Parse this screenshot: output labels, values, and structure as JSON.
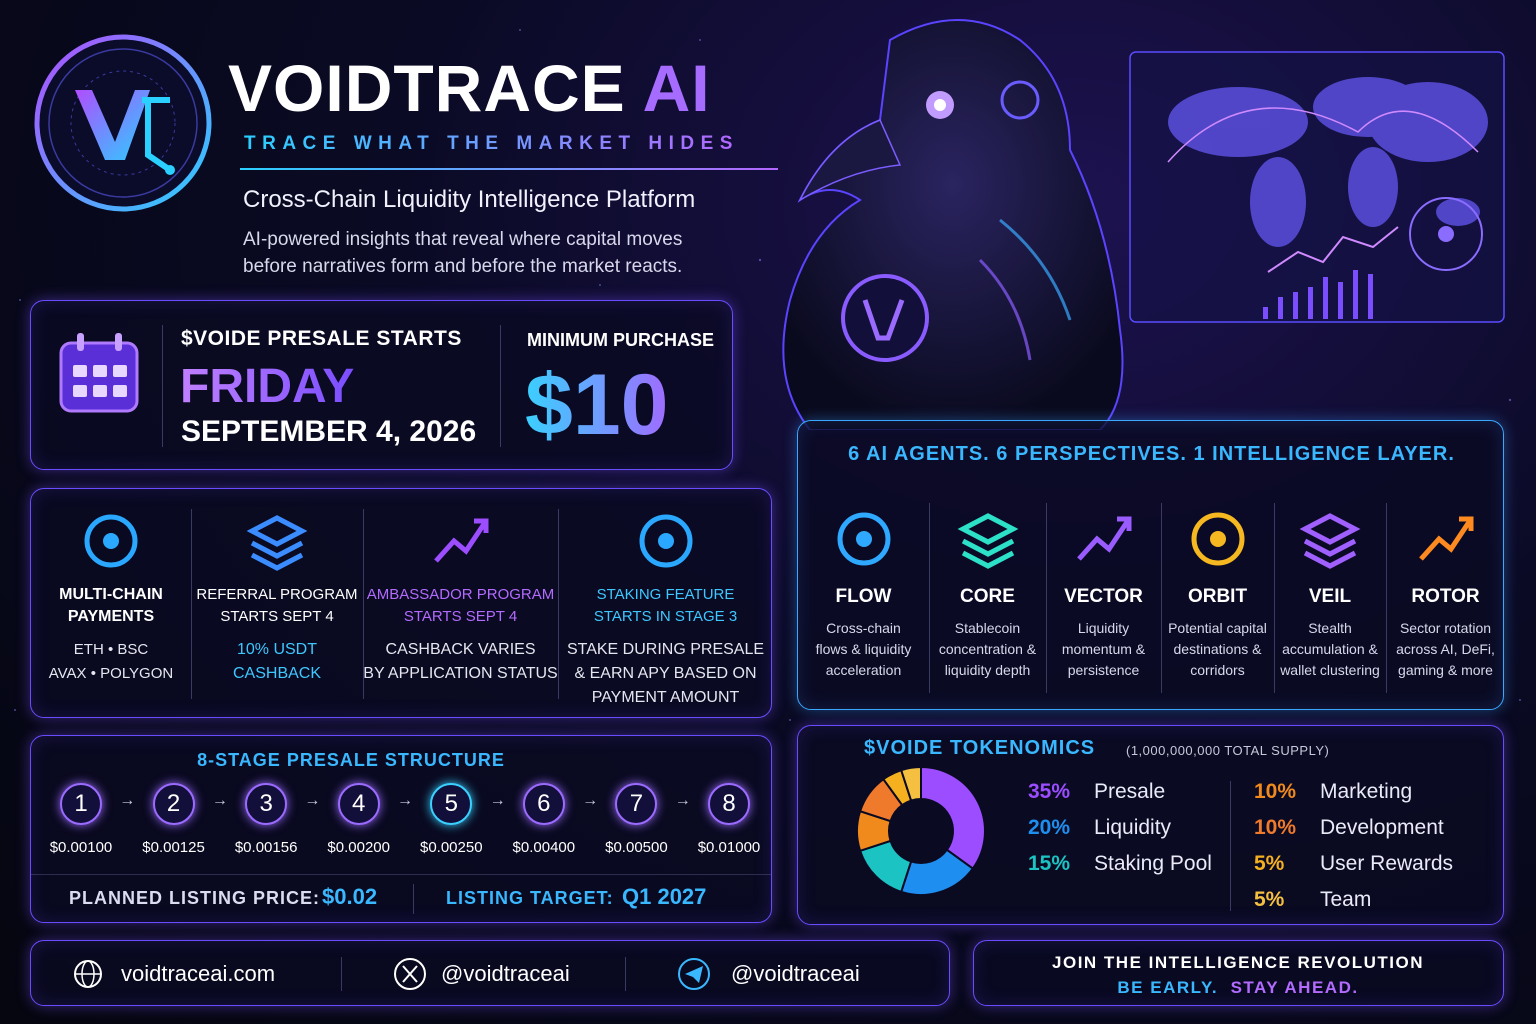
{
  "header": {
    "title": "VOIDTRACE",
    "title_accent": "AI",
    "tagline": "TRACE WHAT THE MARKET HIDES",
    "subtitle": "Cross-Chain Liquidity Intelligence Platform",
    "description": [
      "AI-powered insights that reveal where capital moves",
      "before narratives form and before the market reacts."
    ]
  },
  "presale": {
    "label": "$VOIDE PRESALE STARTS",
    "day": "FRIDAY",
    "date": "SEPTEMBER 4, 2026",
    "min_label": "MINIMUM PURCHASE",
    "min_value": "$10"
  },
  "features": [
    {
      "title": [
        "MULTI-CHAIN",
        "PAYMENTS"
      ],
      "detail": [
        "ETH • BSC",
        "AVAX • POLYGON"
      ],
      "title_color": "#ffffff",
      "detail_color": "#e6e6f0",
      "color": "#2aa8ff"
    },
    {
      "title": [
        "REFERRAL PROGRAM",
        "STARTS SEPT 4"
      ],
      "detail": [
        "10% USDT",
        "CASHBACK"
      ],
      "title_color": "#ffffff",
      "detail_color": "#3ec8ff",
      "color": "#3b8cff"
    },
    {
      "title": [
        "AMBASSADOR PROGRAM",
        "STARTS SEPT 4"
      ],
      "detail": [
        "CASHBACK VARIES",
        "BY APPLICATION STATUS"
      ],
      "title_color": "#b36bff",
      "detail_color": "#e6e6f0",
      "color": "#9b4dff"
    },
    {
      "title": [
        "STAKING FEATURE",
        "STARTS IN STAGE 3"
      ],
      "detail": [
        "STAKE DURING PRESALE",
        "& EARN APY BASED ON",
        "PAYMENT AMOUNT"
      ],
      "title_color": "#3ec8ff",
      "detail_color": "#e6e6f0",
      "color": "#2aa8ff"
    }
  ],
  "agents": {
    "title": "6 AI AGENTS. 6 PERSPECTIVES. 1 INTELLIGENCE LAYER.",
    "items": [
      {
        "name": "FLOW",
        "description": [
          "Cross-chain",
          "flows & liquidity",
          "acceleration"
        ],
        "color": "#2fa8ff"
      },
      {
        "name": "CORE",
        "description": [
          "Stablecoin",
          "concentration &",
          "liquidity depth"
        ],
        "color": "#2de0c8"
      },
      {
        "name": "VECTOR",
        "description": [
          "Liquidity",
          "momentum &",
          "persistence"
        ],
        "color": "#9a5cff"
      },
      {
        "name": "ORBIT",
        "description": [
          "Potential capital",
          "destinations &",
          "corridors"
        ],
        "color": "#f5b820"
      },
      {
        "name": "VEIL",
        "description": [
          "Stealth",
          "accumulation &",
          "wallet clustering"
        ],
        "color": "#a060ff"
      },
      {
        "name": "ROTOR",
        "description": [
          "Sector rotation",
          "across AI, DeFi,",
          "gaming & more"
        ],
        "color": "#ff8a20"
      }
    ]
  },
  "stages": {
    "title": "8-STAGE PRESALE STRUCTURE",
    "items": [
      {
        "number": 1,
        "price": "$0.00100"
      },
      {
        "number": 2,
        "price": "$0.00125"
      },
      {
        "number": 3,
        "price": "$0.00156"
      },
      {
        "number": 4,
        "price": "$0.00200"
      },
      {
        "number": 5,
        "price": "$0.00250"
      },
      {
        "number": 6,
        "price": "$0.00400"
      },
      {
        "number": 7,
        "price": "$0.00500"
      },
      {
        "number": 8,
        "price": "$0.01000"
      }
    ],
    "listing_label": "PLANNED LISTING PRICE:",
    "listing_price": "$0.02",
    "target_label": "LISTING TARGET:",
    "target": "Q1 2027"
  },
  "tokenomics": {
    "title": "$VOIDE TOKENOMICS",
    "supply": "(1,000,000,000 TOTAL SUPPLY)",
    "items": [
      {
        "name": "Presale",
        "value": 35,
        "value_label": "35%",
        "color": "#9b4dff"
      },
      {
        "name": "Liquidity",
        "value": 20,
        "value_label": "20%",
        "color": "#1e8ff0"
      },
      {
        "name": "Staking Pool",
        "value": 15,
        "value_label": "15%",
        "color": "#1cc3c3"
      },
      {
        "name": "Marketing",
        "value": 10,
        "value_label": "10%",
        "color": "#f08a1c"
      },
      {
        "name": "Development",
        "value": 10,
        "value_label": "10%",
        "color": "#f07a2c"
      },
      {
        "name": "User Rewards",
        "value": 5,
        "value_label": "5%",
        "color": "#f5b020"
      },
      {
        "name": "Team",
        "value": 5,
        "value_label": "5%",
        "color": "#f5c040"
      }
    ]
  },
  "footer": {
    "website": "voidtraceai.com",
    "x_handle": "@voidtraceai",
    "telegram": "@voidtraceai",
    "cta": "JOIN THE INTELLIGENCE REVOLUTION",
    "cta_early": "BE EARLY.",
    "cta_ahead": "STAY AHEAD."
  }
}
